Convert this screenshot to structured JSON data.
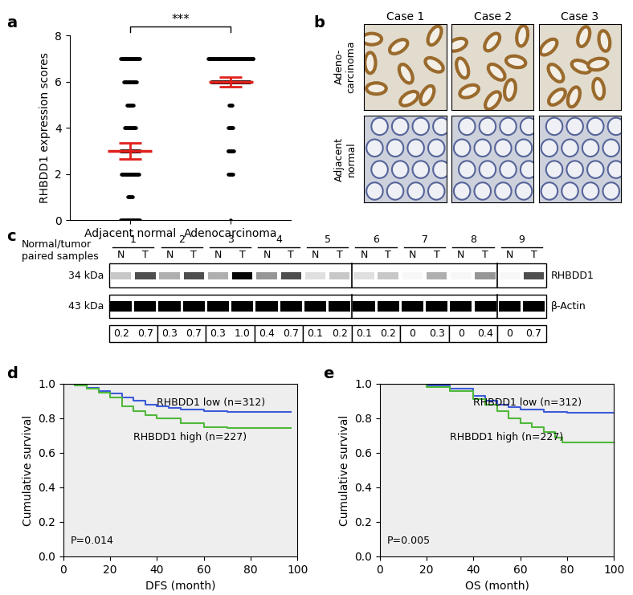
{
  "chart_data": [
    {
      "panel": "a",
      "type": "dot_plot",
      "categories": [
        "Adjacent normal",
        "Adenocarcinoma"
      ],
      "y_label": "RHBDD1 expression scores",
      "scores": [
        0,
        1,
        2,
        3,
        4,
        5,
        6,
        7
      ],
      "counts": [
        [
          30,
          8,
          28,
          30,
          18,
          10,
          20,
          30
        ],
        [
          1,
          0,
          8,
          10,
          8,
          6,
          60,
          70
        ]
      ],
      "mean": [
        3.0,
        6.0
      ],
      "sem": [
        0.35,
        0.2
      ],
      "annotation": "***",
      "color": "#000000",
      "ylim": [
        0,
        8
      ],
      "yticks": [
        0,
        2,
        4,
        6,
        8
      ]
    },
    {
      "panel": "d",
      "type": "line",
      "line_style": "steps",
      "x_label": "DFS (month)",
      "y_label": "Cumulative survival",
      "annotation": "P=0.014",
      "xlim": [
        0,
        100
      ],
      "xticks": [
        0,
        20,
        40,
        60,
        80,
        100
      ],
      "ylim": [
        0.0,
        1.0
      ],
      "yticks": [
        0.0,
        0.2,
        0.4,
        0.6,
        0.8,
        1.0
      ],
      "series": [
        {
          "name": "RHBDD1 low (n=312)",
          "color": "#3d5bd9",
          "x": [
            0,
            5,
            10,
            15,
            20,
            25,
            30,
            35,
            40,
            45,
            50,
            60,
            70,
            97
          ],
          "values": [
            1.0,
            0.99,
            0.975,
            0.96,
            0.945,
            0.92,
            0.9,
            0.88,
            0.87,
            0.86,
            0.85,
            0.84,
            0.835,
            0.835
          ]
        },
        {
          "name": "RHBDD1 high (n=227)",
          "color": "#4fb83a",
          "x": [
            0,
            5,
            10,
            15,
            20,
            25,
            30,
            35,
            40,
            50,
            60,
            70,
            97
          ],
          "values": [
            1.0,
            0.99,
            0.97,
            0.95,
            0.92,
            0.87,
            0.84,
            0.82,
            0.8,
            0.77,
            0.75,
            0.745,
            0.745
          ]
        }
      ]
    },
    {
      "panel": "e",
      "type": "line",
      "line_style": "steps",
      "x_label": "OS (month)",
      "y_label": "Cumulative survival",
      "annotation": "P=0.005",
      "xlim": [
        0,
        100
      ],
      "xticks": [
        0,
        20,
        40,
        60,
        80,
        100
      ],
      "ylim": [
        0.0,
        1.0
      ],
      "yticks": [
        0.0,
        0.2,
        0.4,
        0.6,
        0.8,
        1.0
      ],
      "series": [
        {
          "name": "RHBDD1 low (n=312)",
          "color": "#3d5bd9",
          "x": [
            0,
            10,
            20,
            30,
            40,
            45,
            50,
            55,
            60,
            70,
            80,
            100
          ],
          "values": [
            1.0,
            1.0,
            0.99,
            0.97,
            0.93,
            0.9,
            0.88,
            0.865,
            0.85,
            0.835,
            0.83,
            0.83
          ]
        },
        {
          "name": "RHBDD1 high (n=227)",
          "color": "#4fb83a",
          "x": [
            0,
            10,
            20,
            30,
            40,
            45,
            50,
            55,
            60,
            65,
            70,
            75,
            78,
            100
          ],
          "values": [
            1.0,
            1.0,
            0.98,
            0.96,
            0.91,
            0.88,
            0.84,
            0.8,
            0.77,
            0.75,
            0.72,
            0.69,
            0.66,
            0.66
          ]
        }
      ]
    }
  ],
  "image_panel": {
    "panel": "b",
    "columns": [
      "Case 1",
      "Case 2",
      "Case 3"
    ],
    "rows": [
      "Adeno-\ncarcinoma",
      "Adjacent\nnormal"
    ]
  },
  "blot_panel": {
    "panel": "c",
    "title": "Normal/tumor\npaired samples",
    "pairs": [
      "1",
      "2",
      "3",
      "4",
      "5",
      "6",
      "7",
      "8",
      "9"
    ],
    "lane_labels": [
      "N",
      "T"
    ],
    "blots": [
      {
        "name": "RHBDD1",
        "size": "34 kDa"
      },
      {
        "name": "β-Actin",
        "size": "43 kDa"
      }
    ],
    "values": [
      [
        0.2,
        0.7
      ],
      [
        0.3,
        0.7
      ],
      [
        0.3,
        1.0
      ],
      [
        0.4,
        0.7
      ],
      [
        0.1,
        0.2
      ],
      [
        0.1,
        0.2
      ],
      [
        0,
        0.3
      ],
      [
        0,
        0.4
      ],
      [
        0,
        0.7
      ]
    ]
  }
}
